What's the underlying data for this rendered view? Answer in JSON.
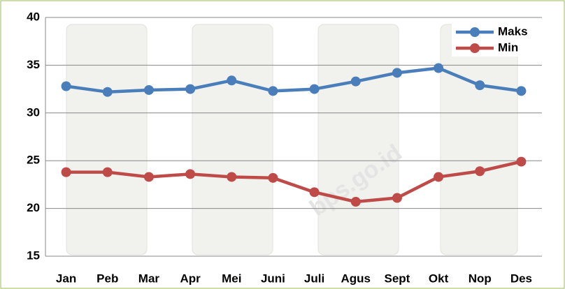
{
  "chart_data": {
    "type": "line",
    "categories": [
      "Jan",
      "Peb",
      "Mar",
      "Apr",
      "Mei",
      "Juni",
      "Juli",
      "Agus",
      "Sept",
      "Okt",
      "Nop",
      "Des"
    ],
    "series": [
      {
        "name": "Maks",
        "color": "#4a7ebb",
        "values": [
          32.8,
          32.2,
          32.4,
          32.5,
          33.4,
          32.3,
          32.5,
          33.3,
          34.2,
          34.7,
          32.9,
          32.3
        ]
      },
      {
        "name": "Min",
        "color": "#be4b48",
        "values": [
          23.8,
          23.8,
          23.3,
          23.6,
          23.3,
          23.2,
          21.7,
          20.7,
          21.1,
          23.3,
          23.9,
          24.9
        ]
      }
    ],
    "ylim": [
      15,
      40
    ],
    "yticks": [
      15,
      20,
      25,
      30,
      35,
      40
    ],
    "grid": true,
    "legend": "top-right",
    "watermark": "bps.go.id"
  }
}
